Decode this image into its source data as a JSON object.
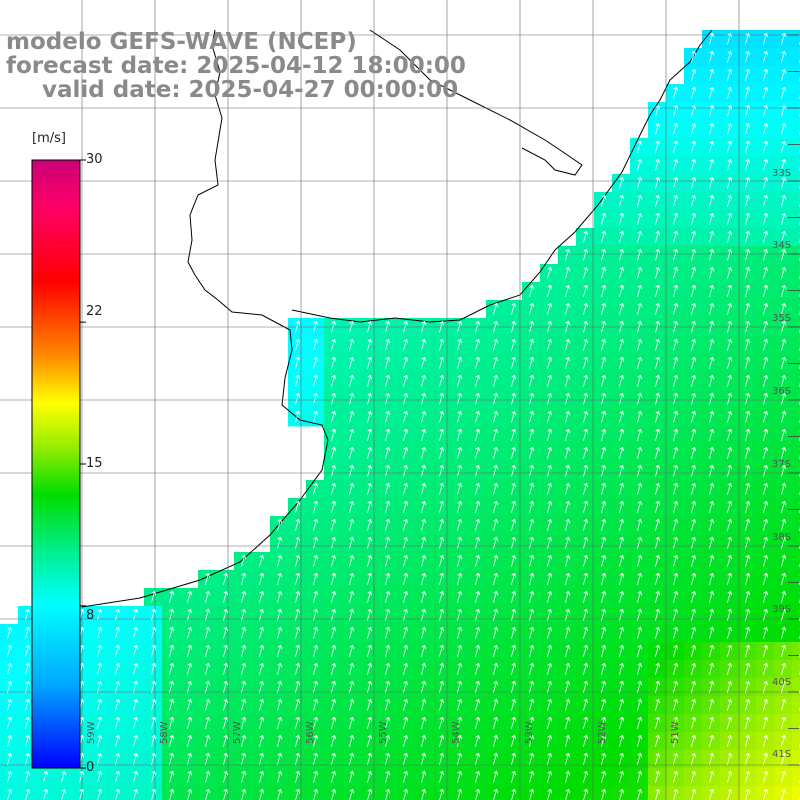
{
  "header": {
    "model": "modelo GEFS-WAVE (NCEP)",
    "forecast": "forecast date: 2025-04-12 18:00:00",
    "valid": "valid date: 2025-04-27 00:00:00"
  },
  "colorbar": {
    "unit": "[m/s]",
    "ticks": [
      "30",
      "22",
      "15",
      "8",
      "0"
    ],
    "tick_values": [
      30,
      22,
      15,
      8,
      0
    ],
    "min": 0,
    "max": 30,
    "colors": [
      "#0000ff",
      "#00aaff",
      "#00ffff",
      "#00ee88",
      "#00dd00",
      "#99ee00",
      "#ffff00",
      "#ff8800",
      "#ff0000",
      "#ff0066",
      "#cc0077"
    ]
  },
  "lat_labels": [
    "33S",
    "34S",
    "35S",
    "36S",
    "37S",
    "38S",
    "39S",
    "40S",
    "41S"
  ],
  "lon_labels": [
    "59W",
    "58W",
    "57W",
    "56W",
    "55W",
    "54W",
    "53W",
    "52W",
    "51W"
  ],
  "map_colors": {
    "land": "#ffffff",
    "grid": "#666666",
    "coast": "#000000",
    "arrows": "#ffffff"
  }
}
